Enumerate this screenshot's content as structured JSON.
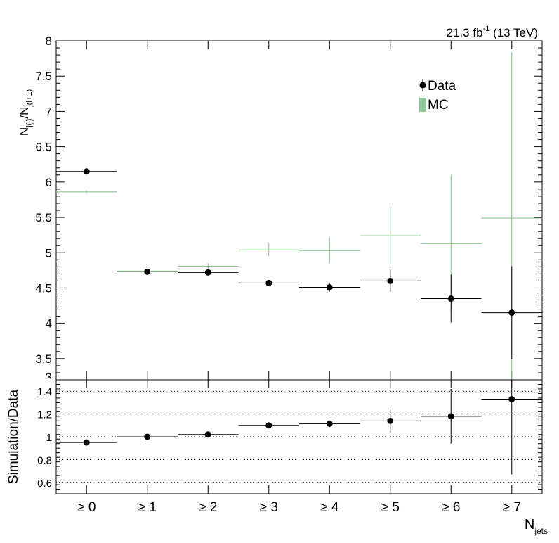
{
  "chart_data": [
    {
      "type": "scatter",
      "panel": "main",
      "lumi_label": {
        "base": "21.3 fb",
        "sup": "-1",
        "rest": " (13 TeV)"
      },
      "ylabel": {
        "base": "N",
        "sub1": "j(i)",
        "mid": "/N",
        "sub2": "j(i+1)"
      },
      "ylim": [
        3.2,
        8
      ],
      "yticks": [
        {
          "value": 3.5,
          "label": "3.5"
        },
        {
          "value": 4,
          "label": "4"
        },
        {
          "value": 4.5,
          "label": "4.5"
        },
        {
          "value": 5,
          "label": "5"
        },
        {
          "value": 5.5,
          "label": "5.5"
        },
        {
          "value": 6,
          "label": "6"
        },
        {
          "value": 6.5,
          "label": "6.5"
        },
        {
          "value": 7,
          "label": "7"
        },
        {
          "value": 7.5,
          "label": "7.5"
        },
        {
          "value": 8,
          "label": "8"
        }
      ],
      "legend": {
        "position": "top-right",
        "entries": [
          {
            "label": "Data",
            "style": "marker"
          },
          {
            "label": "MC",
            "style": "box"
          }
        ]
      },
      "categories": [
        "≥ 0",
        "≥ 1",
        "≥ 2",
        "≥ 3",
        "≥ 4",
        "≥ 5",
        "≥ 6",
        "≥ 7"
      ],
      "series": [
        {
          "name": "Data",
          "color": "#000000",
          "values": [
            6.15,
            4.73,
            4.72,
            4.57,
            4.51,
            4.6,
            4.35,
            4.15
          ],
          "errors": [
            0.02,
            0.02,
            0.03,
            0.03,
            0.06,
            0.16,
            0.34,
            0.66
          ]
        },
        {
          "name": "MC",
          "color": "#7fbf7f",
          "values": [
            5.86,
            4.74,
            4.81,
            5.04,
            5.03,
            5.24,
            5.13,
            5.49
          ],
          "errors": [
            0.02,
            0.02,
            0.04,
            0.09,
            0.18,
            0.42,
            0.97,
            2.35
          ]
        }
      ]
    },
    {
      "type": "scatter",
      "panel": "ratio",
      "ylabel": "Simulation/Data",
      "xlabel": {
        "base": "N",
        "sub": "jets"
      },
      "ylim": [
        0.5,
        1.5
      ],
      "grid_lines": [
        0.6,
        0.8,
        1.0,
        1.2,
        1.4
      ],
      "yticks": [
        {
          "value": 0.6,
          "label": "0.6"
        },
        {
          "value": 0.8,
          "label": "0.8"
        },
        {
          "value": 1.0,
          "label": "1"
        },
        {
          "value": 1.2,
          "label": "1.2"
        },
        {
          "value": 1.4,
          "label": "1.4"
        }
      ],
      "categories": [
        "≥ 0",
        "≥ 1",
        "≥ 2",
        "≥ 3",
        "≥ 4",
        "≥ 5",
        "≥ 6",
        "≥ 7"
      ],
      "series": [
        {
          "values": [
            0.95,
            1.0,
            1.02,
            1.1,
            1.115,
            1.14,
            1.18,
            1.33
          ],
          "errors": [
            0.01,
            0.01,
            0.01,
            0.015,
            0.03,
            0.1,
            0.24,
            0.66
          ]
        }
      ]
    }
  ]
}
